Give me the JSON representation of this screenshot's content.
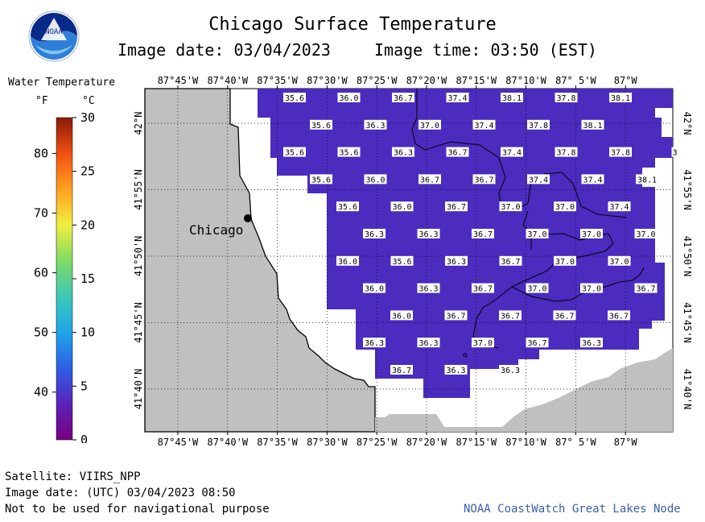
{
  "header": {
    "title": "Chicago Surface Temperature",
    "image_date": "Image date: 03/04/2023",
    "image_time": "Image time: 03:50 (EST)"
  },
  "logo": {
    "text": "NOAA",
    "colors": {
      "top": "#0a2a8a",
      "mid": "#2f7fd8",
      "bottom": "#7fc4f0"
    }
  },
  "legend": {
    "title": "Water Temperature",
    "unit_f": "°F",
    "unit_c": "°C",
    "f_ticks": [
      "40",
      "50",
      "60",
      "70",
      "80"
    ],
    "c_ticks": [
      "30",
      "25",
      "20",
      "15",
      "10",
      "5",
      "0"
    ],
    "f_values": [
      40,
      50,
      60,
      70,
      80
    ],
    "c_values": [
      30,
      25,
      20,
      15,
      10,
      5,
      0
    ],
    "c_range": [
      0,
      30
    ],
    "gradient": [
      "#7a0080",
      "#5b22b8",
      "#2c5fe6",
      "#1ea6e8",
      "#3ec8b8",
      "#7ddc63",
      "#f0ee40",
      "#ffa020",
      "#f05010",
      "#8a1a08"
    ]
  },
  "map": {
    "lon_labels": [
      "87°45'W",
      "87°40'W",
      "87°35'W",
      "87°30'W",
      "87°25'W",
      "87°20'W",
      "87°15'W",
      "87°10'W",
      "87° 5'W",
      "87°W"
    ],
    "lat_labels": [
      "42°N",
      "41°55'N",
      "41°50'N",
      "41°45'N",
      "41°40'N"
    ],
    "city": "Chicago",
    "colors": {
      "land": "#c0c0c0",
      "water_nodata": "#ffffff",
      "water_temp": "#4b2cbf",
      "grid": "#000000"
    },
    "temperature_labels": [
      {
        "v": "35.6",
        "col": 0,
        "row": 0
      },
      {
        "v": "36.0",
        "col": 1,
        "row": 0
      },
      {
        "v": "36.7",
        "col": 2,
        "row": 0
      },
      {
        "v": "37.4",
        "col": 3,
        "row": 0
      },
      {
        "v": "38.1",
        "col": 4,
        "row": 0
      },
      {
        "v": "37.8",
        "col": 5,
        "row": 0
      },
      {
        "v": "38.1",
        "col": 6,
        "row": 0
      },
      {
        "v": "35.6",
        "col": 0,
        "row": 1
      },
      {
        "v": "36.3",
        "col": 1,
        "row": 1
      },
      {
        "v": "37.0",
        "col": 2,
        "row": 1
      },
      {
        "v": "37.4",
        "col": 3,
        "row": 1
      },
      {
        "v": "37.8",
        "col": 4,
        "row": 1
      },
      {
        "v": "38.1",
        "col": 5,
        "row": 1
      },
      {
        "v": "35.6",
        "col": 0,
        "row": 2
      },
      {
        "v": "35.6",
        "col": 1,
        "row": 2
      },
      {
        "v": "36.3",
        "col": 2,
        "row": 2
      },
      {
        "v": "36.7",
        "col": 3,
        "row": 2
      },
      {
        "v": "37.4",
        "col": 4,
        "row": 2
      },
      {
        "v": "37.8",
        "col": 5,
        "row": 2
      },
      {
        "v": "37.8",
        "col": 6,
        "row": 2
      },
      {
        "v": "3",
        "col": 7,
        "row": 2
      },
      {
        "v": "35.6",
        "col": 0,
        "row": 3
      },
      {
        "v": "36.0",
        "col": 1,
        "row": 3
      },
      {
        "v": "36.7",
        "col": 2,
        "row": 3
      },
      {
        "v": "36.7",
        "col": 3,
        "row": 3
      },
      {
        "v": "37.4",
        "col": 4,
        "row": 3
      },
      {
        "v": "37.4",
        "col": 5,
        "row": 3
      },
      {
        "v": "38.1",
        "col": 6,
        "row": 3
      },
      {
        "v": "35.6",
        "col": 0,
        "row": 4
      },
      {
        "v": "36.0",
        "col": 1,
        "row": 4
      },
      {
        "v": "36.7",
        "col": 2,
        "row": 4
      },
      {
        "v": "37.0",
        "col": 3,
        "row": 4
      },
      {
        "v": "37.0",
        "col": 4,
        "row": 4
      },
      {
        "v": "37.4",
        "col": 5,
        "row": 4
      },
      {
        "v": "36.3",
        "col": 0,
        "row": 5
      },
      {
        "v": "36.3",
        "col": 1,
        "row": 5
      },
      {
        "v": "36.7",
        "col": 2,
        "row": 5
      },
      {
        "v": "37.0",
        "col": 3,
        "row": 5
      },
      {
        "v": "37.0",
        "col": 4,
        "row": 5
      },
      {
        "v": "37.0",
        "col": 5,
        "row": 5
      },
      {
        "v": "36.0",
        "col": 0,
        "row": 6
      },
      {
        "v": "35.6",
        "col": 1,
        "row": 6
      },
      {
        "v": "36.3",
        "col": 2,
        "row": 6
      },
      {
        "v": "36.7",
        "col": 3,
        "row": 6
      },
      {
        "v": "37.0",
        "col": 4,
        "row": 6
      },
      {
        "v": "37.0",
        "col": 5,
        "row": 6
      },
      {
        "v": "36.0",
        "col": 0,
        "row": 7
      },
      {
        "v": "36.3",
        "col": 1,
        "row": 7
      },
      {
        "v": "36.7",
        "col": 2,
        "row": 7
      },
      {
        "v": "37.0",
        "col": 3,
        "row": 7
      },
      {
        "v": "37.0",
        "col": 4,
        "row": 7
      },
      {
        "v": "36.7",
        "col": 5,
        "row": 7
      },
      {
        "v": "36.0",
        "col": 0,
        "row": 8
      },
      {
        "v": "36.7",
        "col": 1,
        "row": 8
      },
      {
        "v": "36.7",
        "col": 2,
        "row": 8
      },
      {
        "v": "36.7",
        "col": 3,
        "row": 8
      },
      {
        "v": "36.7",
        "col": 4,
        "row": 8
      },
      {
        "v": "36.3",
        "col": 0,
        "row": 9
      },
      {
        "v": "36.3",
        "col": 1,
        "row": 9
      },
      {
        "v": "37.0",
        "col": 2,
        "row": 9
      },
      {
        "v": "36.7",
        "col": 3,
        "row": 9
      },
      {
        "v": "36.3",
        "col": 4,
        "row": 9
      },
      {
        "v": "36.7",
        "col": 0,
        "row": 10
      },
      {
        "v": "36.3",
        "col": 1,
        "row": 10
      },
      {
        "v": "36.3",
        "col": 2,
        "row": 10
      }
    ]
  },
  "footer": {
    "satellite": "Satellite: VIIRS_NPP",
    "utc_date": "Image date: (UTC) 03/04/2023  08:50",
    "disclaimer": "Not to be used for navigational purpose",
    "credit": "NOAA CoastWatch Great Lakes Node"
  }
}
